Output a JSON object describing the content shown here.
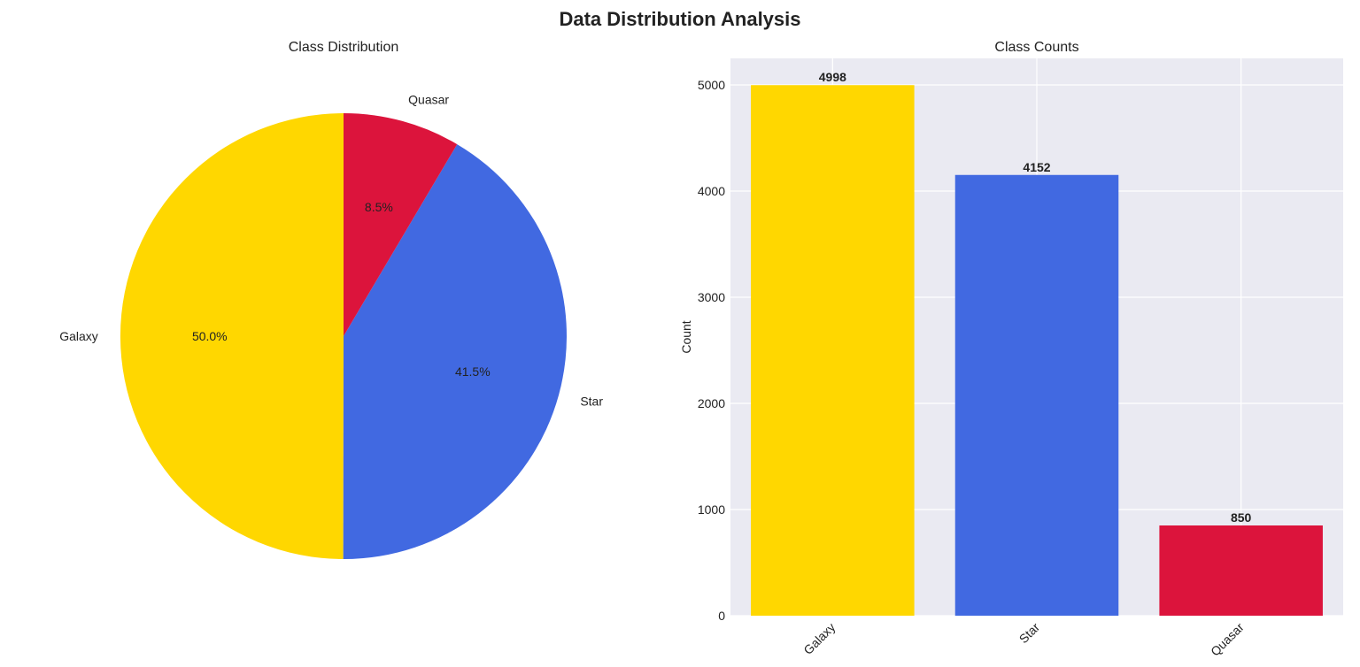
{
  "figure": {
    "title": "Data Distribution Analysis"
  },
  "colors": {
    "Galaxy": "#FFD700",
    "Star": "#4169E1",
    "Quasar": "#DC143C",
    "axes_background": "#EAEAF2",
    "grid": "#FFFFFF"
  },
  "chart_data": [
    {
      "type": "pie",
      "title": "Class Distribution",
      "categories": [
        "Galaxy",
        "Star",
        "Quasar"
      ],
      "values": [
        4998,
        4152,
        850
      ],
      "percent_labels": [
        "50.0%",
        "41.5%",
        "8.5%"
      ],
      "start_angle_deg": 90,
      "direction": "counterclockwise"
    },
    {
      "type": "bar",
      "title": "Class Counts",
      "categories": [
        "Galaxy",
        "Star",
        "Quasar"
      ],
      "values": [
        4998,
        4152,
        850
      ],
      "value_labels": [
        "4998",
        "4152",
        "850"
      ],
      "xlabel": "",
      "ylabel": "Count",
      "ylim": [
        0,
        5250
      ],
      "yticks": [
        0,
        1000,
        2000,
        3000,
        4000,
        5000
      ],
      "xtick_rotation_deg": 45,
      "grid": true
    }
  ]
}
